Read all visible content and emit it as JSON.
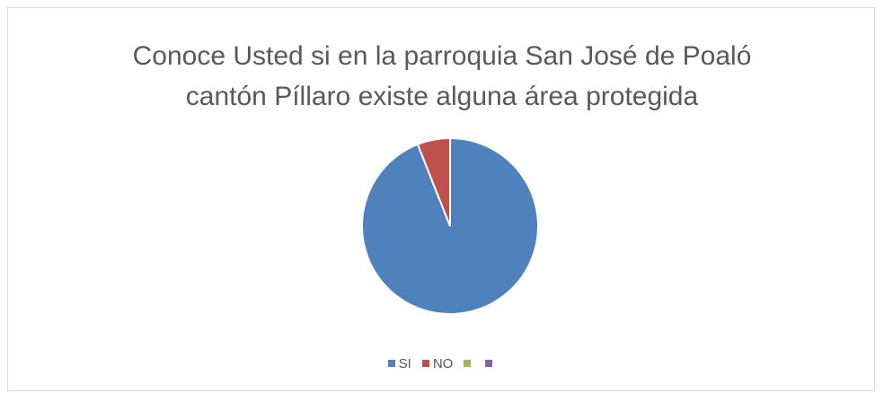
{
  "chart_data": {
    "type": "pie",
    "title": "Conoce Usted si en la parroquia San José de Poaló cantón Píllaro existe alguna área protegida",
    "categories": [
      "SI",
      "NO",
      null,
      null
    ],
    "values": [
      94,
      6,
      0,
      0
    ],
    "colors": [
      "#4f81bd",
      "#c0504d",
      "#9bbb59",
      "#8064a2"
    ],
    "legend": "bottom"
  }
}
